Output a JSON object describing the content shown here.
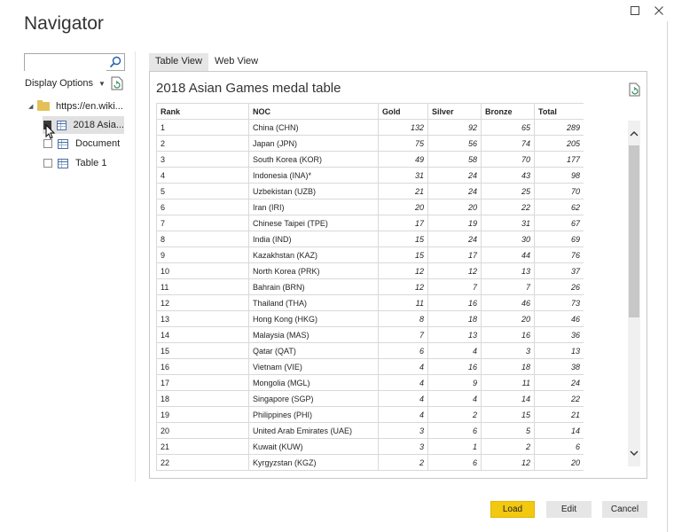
{
  "window": {
    "title": "Navigator",
    "maximize_glyph": "☐",
    "close_glyph": "✕"
  },
  "sidebar": {
    "search_placeholder": "",
    "display_options_label": "Display Options",
    "tree": [
      {
        "label": "https://en.wiki...",
        "type": "folder",
        "icon": "folder-icon"
      },
      {
        "label": "2018 Asia...",
        "type": "table",
        "icon": "table-icon",
        "checked": true,
        "selected": true
      },
      {
        "label": "Document",
        "type": "table",
        "icon": "table-icon",
        "checked": false
      },
      {
        "label": "Table 1",
        "type": "table",
        "icon": "table-icon",
        "checked": false
      }
    ]
  },
  "tabs": [
    {
      "label": "Table View",
      "active": true
    },
    {
      "label": "Web View",
      "active": false
    }
  ],
  "preview": {
    "title": "2018 Asian Games medal table",
    "columns": [
      "Rank",
      "NOC",
      "Gold",
      "Silver",
      "Bronze",
      "Total"
    ],
    "rows": [
      [
        "1",
        "China (CHN)",
        "132",
        "92",
        "65",
        "289"
      ],
      [
        "2",
        "Japan (JPN)",
        "75",
        "56",
        "74",
        "205"
      ],
      [
        "3",
        "South Korea (KOR)",
        "49",
        "58",
        "70",
        "177"
      ],
      [
        "4",
        "Indonesia (INA)*",
        "31",
        "24",
        "43",
        "98"
      ],
      [
        "5",
        "Uzbekistan (UZB)",
        "21",
        "24",
        "25",
        "70"
      ],
      [
        "6",
        "Iran (IRI)",
        "20",
        "20",
        "22",
        "62"
      ],
      [
        "7",
        "Chinese Taipei (TPE)",
        "17",
        "19",
        "31",
        "67"
      ],
      [
        "8",
        "India (IND)",
        "15",
        "24",
        "30",
        "69"
      ],
      [
        "9",
        "Kazakhstan (KAZ)",
        "15",
        "17",
        "44",
        "76"
      ],
      [
        "10",
        "North Korea (PRK)",
        "12",
        "12",
        "13",
        "37"
      ],
      [
        "11",
        "Bahrain (BRN)",
        "12",
        "7",
        "7",
        "26"
      ],
      [
        "12",
        "Thailand (THA)",
        "11",
        "16",
        "46",
        "73"
      ],
      [
        "13",
        "Hong Kong (HKG)",
        "8",
        "18",
        "20",
        "46"
      ],
      [
        "14",
        "Malaysia (MAS)",
        "7",
        "13",
        "16",
        "36"
      ],
      [
        "15",
        "Qatar (QAT)",
        "6",
        "4",
        "3",
        "13"
      ],
      [
        "16",
        "Vietnam (VIE)",
        "4",
        "16",
        "18",
        "38"
      ],
      [
        "17",
        "Mongolia (MGL)",
        "4",
        "9",
        "11",
        "24"
      ],
      [
        "18",
        "Singapore (SGP)",
        "4",
        "4",
        "14",
        "22"
      ],
      [
        "19",
        "Philippines (PHI)",
        "4",
        "2",
        "15",
        "21"
      ],
      [
        "20",
        "United Arab Emirates (UAE)",
        "3",
        "6",
        "5",
        "14"
      ],
      [
        "21",
        "Kuwait (KUW)",
        "3",
        "1",
        "2",
        "6"
      ],
      [
        "22",
        "Kyrgyzstan (KGZ)",
        "2",
        "6",
        "12",
        "20"
      ]
    ]
  },
  "footer": {
    "load_label": "Load",
    "edit_label": "Edit",
    "cancel_label": "Cancel"
  },
  "colors": {
    "accent_load": "#f2c811",
    "selected_row": "#e1e1e1",
    "table_icon": "#4a6fa5",
    "folder": "#e3c05a"
  }
}
